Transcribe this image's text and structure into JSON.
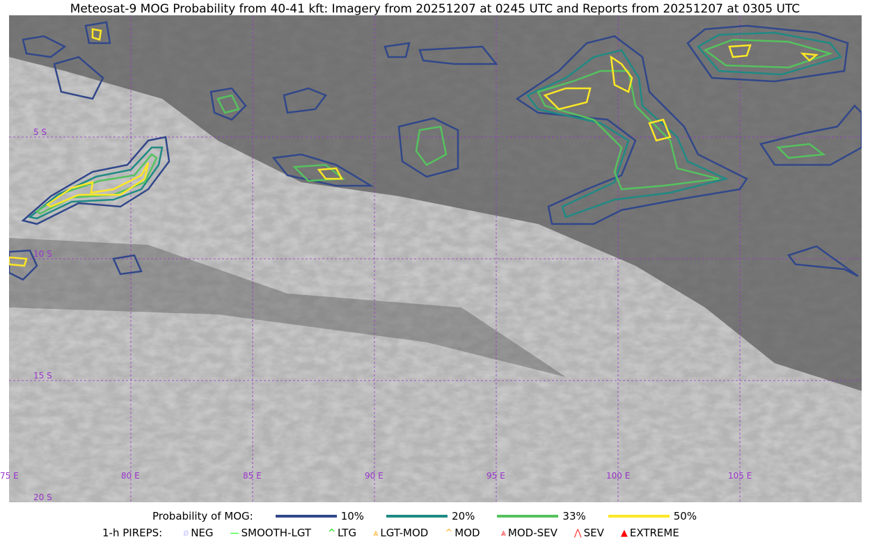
{
  "title": "Meteosat-9 MOG Probability from 40-41 kft: Imagery from 20251207 at 0245 UTC and Reports from 20251207 at 0305 UTC",
  "map": {
    "lon_labels": [
      "75 E",
      "80 E",
      "85 E",
      "90 E",
      "95 E",
      "100 E",
      "105 E"
    ],
    "lat_labels": [
      "5 S",
      "10 S",
      "15 S",
      "20 S"
    ],
    "grid_color": "#9933cc"
  },
  "legend": {
    "prob_title": "Probability of MOG:",
    "prob_levels": [
      {
        "label": "10%",
        "color": "#31478a"
      },
      {
        "label": "20%",
        "color": "#1f8a84"
      },
      {
        "label": "33%",
        "color": "#55c25e"
      },
      {
        "label": "50%",
        "color": "#fde725"
      }
    ],
    "pirep_title": "1-h PIREPS:",
    "pireps": [
      {
        "label": "NEG",
        "color": "#c8c8ff",
        "icon": "neg-icon"
      },
      {
        "label": "SMOOTH-LGT",
        "color": "#00ff00",
        "icon": "line-icon"
      },
      {
        "label": "LTG",
        "color": "#00dd00",
        "icon": "caret-icon"
      },
      {
        "label": "LGT-MOD",
        "color": "#ffb020",
        "icon": "caret-bar-icon"
      },
      {
        "label": "MOD",
        "color": "#ffb020",
        "icon": "caret-icon"
      },
      {
        "label": "MOD-SEV",
        "color": "#ff3030",
        "icon": "double-caret-bar-icon"
      },
      {
        "label": "SEV",
        "color": "#ff3030",
        "icon": "double-caret-icon"
      },
      {
        "label": "EXTREME",
        "color": "#ff0000",
        "icon": "triangle-icon"
      }
    ]
  }
}
